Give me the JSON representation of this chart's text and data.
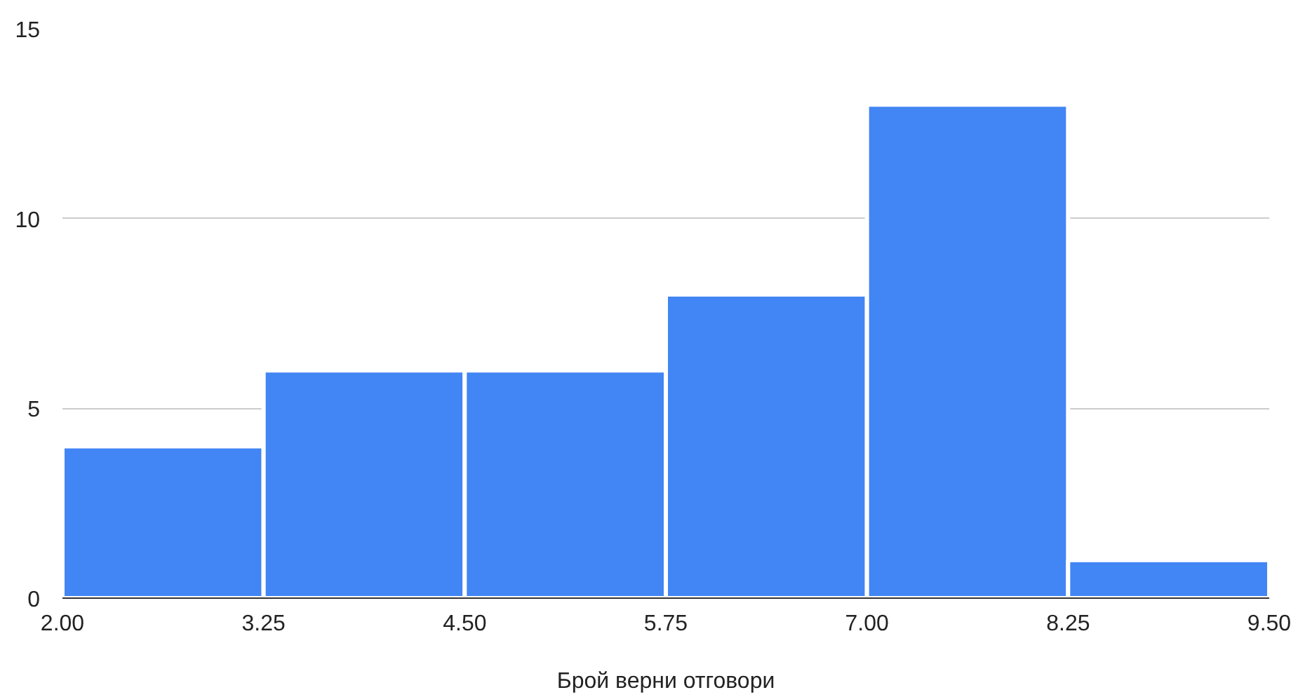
{
  "chart_data": {
    "type": "histogram",
    "xlabel": "Брой верни отговори",
    "bins": [
      2.0,
      3.25,
      4.5,
      5.75,
      7.0,
      8.25,
      9.5
    ],
    "values": [
      4,
      6,
      6,
      8,
      13,
      1
    ],
    "color": "#4285f4",
    "xlim": [
      2.0,
      9.5
    ],
    "xticks": [
      {
        "value": 2.0,
        "label": "2.00"
      },
      {
        "value": 3.25,
        "label": "3.25"
      },
      {
        "value": 4.5,
        "label": "4.50"
      },
      {
        "value": 5.75,
        "label": "5.75"
      },
      {
        "value": 7.0,
        "label": "7.00"
      },
      {
        "value": 8.25,
        "label": "8.25"
      },
      {
        "value": 9.5,
        "label": "9.50"
      }
    ],
    "ylim": [
      0,
      15
    ],
    "yticks": [
      0,
      5,
      10,
      15
    ],
    "grid": "y"
  }
}
